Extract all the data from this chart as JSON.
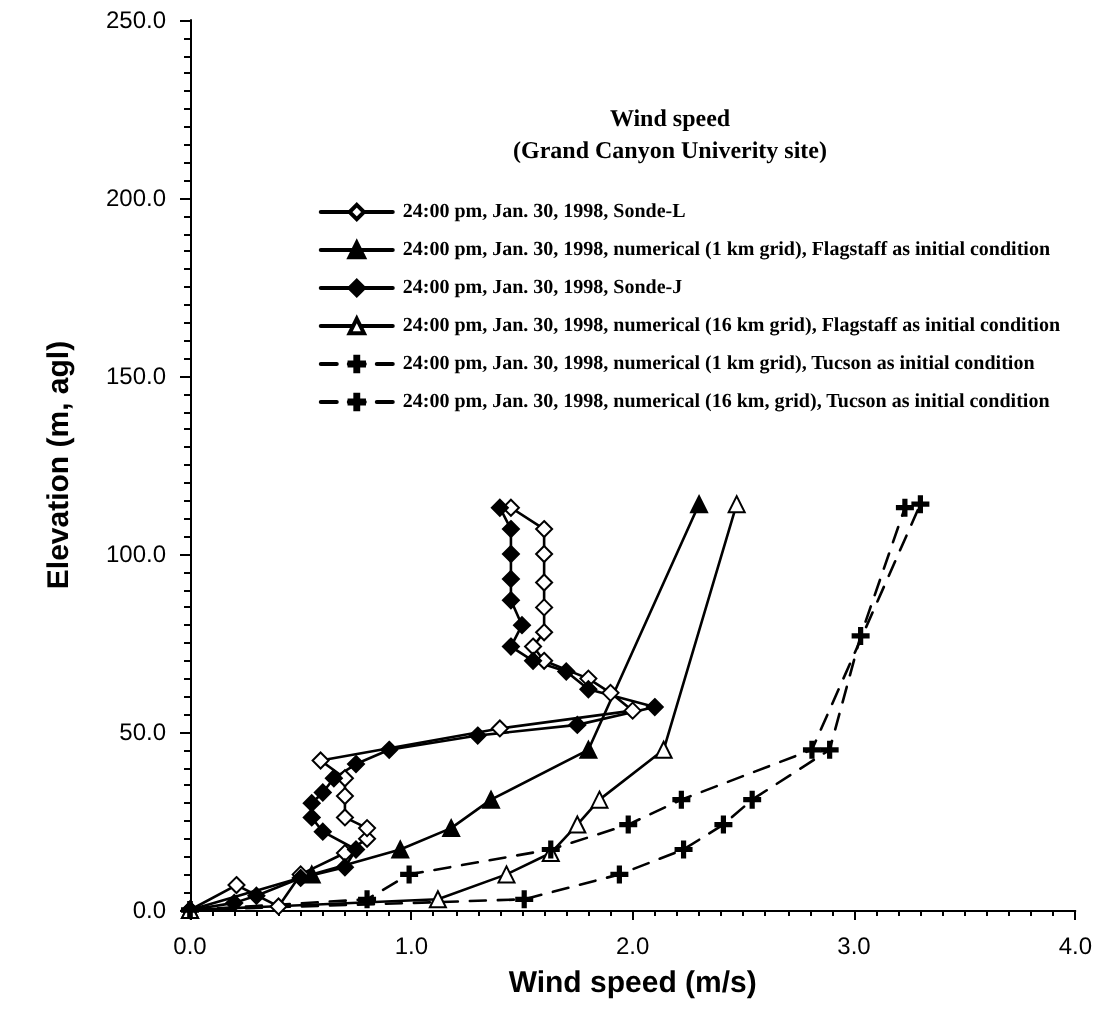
{
  "chart_data": {
    "type": "line",
    "title": "Wind speed",
    "subtitle": "(Grand Canyon Univerity site)",
    "xlabel": "Wind speed (m/s)",
    "ylabel": "Elevation (m, agl)",
    "xlim": [
      0,
      4
    ],
    "xticks": [
      {
        "value": 0,
        "label": "0.0"
      },
      {
        "value": 1,
        "label": "1.0"
      },
      {
        "value": 2,
        "label": "2.0"
      },
      {
        "value": 3,
        "label": "3.0"
      },
      {
        "value": 4,
        "label": "4.0"
      }
    ],
    "ylim": [
      0,
      250
    ],
    "yticks": [
      {
        "value": 0,
        "label": "0.0"
      },
      {
        "value": 50,
        "label": "50.0"
      },
      {
        "value": 100,
        "label": "100.0"
      },
      {
        "value": 150,
        "label": "150.0"
      },
      {
        "value": 200,
        "label": "200.0"
      },
      {
        "value": 250,
        "label": "250.0"
      }
    ],
    "grid": false,
    "legend": "top right",
    "series": [
      {
        "name": "24:00 pm, Jan. 30, 1998, Sonde-L",
        "color": "#000000",
        "marker": "diamond",
        "colors": [
          "#ffffff",
          "#ffffff",
          "#ffffff",
          "#ffffff",
          "#ffffff",
          "#ffffff",
          "#ffffff",
          "#ffffff",
          "#ffffff",
          "#ffffff",
          "#ffffff",
          "#ffffff",
          "#ffffff",
          "#ffffff",
          "#ffffff",
          "#ffffff",
          "#ffffff",
          "#ffffff",
          "#ffffff",
          "#ffffff",
          "#ffffff",
          "#ffffff",
          "#ffffff"
        ],
        "line_style": "solid",
        "x": [
          0,
          0.21,
          0.4,
          0.5,
          0.7,
          0.8,
          0.8,
          0.7,
          0.7,
          0.7,
          0.59,
          1.4,
          2.0,
          1.9,
          1.8,
          1.6,
          1.55,
          1.6,
          1.6,
          1.6,
          1.6,
          1.6,
          1.45
        ],
        "values": [
          0,
          7,
          1,
          10,
          16,
          20,
          23,
          26,
          32,
          37,
          42,
          51,
          56,
          61,
          65,
          70,
          74,
          78,
          85,
          92,
          100,
          107,
          113
        ]
      },
      {
        "name": "24:00 pm, Jan. 30, 1998, numerical (1 km grid), Flagstaff as initial condition",
        "color": "#000000",
        "marker": "triangle",
        "line_style": "solid",
        "x": [
          0,
          0.55,
          0.95,
          1.18,
          1.36,
          1.8,
          2.3
        ],
        "values": [
          0,
          10,
          17,
          23,
          31,
          45,
          114
        ]
      },
      {
        "name": "24:00 pm, Jan. 30, 1998, Sonde-J",
        "color": "#000000",
        "marker": "diamond",
        "line_style": "solid",
        "x": [
          0,
          0.2,
          0.3,
          0.5,
          0.7,
          0.75,
          0.6,
          0.55,
          0.55,
          0.6,
          0.65,
          0.75,
          0.9,
          1.3,
          1.75,
          2.1,
          1.8,
          1.7,
          1.55,
          1.45,
          1.5,
          1.45,
          1.45,
          1.45,
          1.45,
          1.4
        ],
        "values": [
          0,
          2,
          4,
          9,
          12,
          17,
          22,
          26,
          30,
          33,
          37,
          41,
          45,
          49,
          52,
          57,
          62,
          67,
          70,
          74,
          80,
          87,
          93,
          100,
          107,
          113
        ]
      },
      {
        "name": "24:00 pm, Jan. 30, 1998, numerical (16 km grid), Flagstaff as initial condition",
        "color": "#000000",
        "marker": "triangle",
        "colors": [
          "#ffffff",
          "#ffffff",
          "#ffffff",
          "#ffffff",
          "#ffffff",
          "#ffffff",
          "#ffffff",
          "#ffffff"
        ],
        "line_style": "solid",
        "x": [
          0,
          1.12,
          1.43,
          1.63,
          1.75,
          1.85,
          2.14,
          2.47
        ],
        "values": [
          0,
          3,
          10,
          16,
          24,
          31,
          45,
          114
        ]
      },
      {
        "name": "24:00 pm, Jan. 30, 1998, numerical (1 km grid), Tucson as initial condition",
        "color": "#000000",
        "marker": "cross",
        "line_style": "dashed",
        "x": [
          0,
          0.8,
          0.99,
          1.63,
          1.98,
          2.22,
          2.81,
          3.3
        ],
        "values": [
          0,
          3,
          10,
          17,
          24,
          31,
          45,
          114
        ]
      },
      {
        "name": "24:00 pm, Jan. 30, 1998, numerical (16 km, grid), Tucson as initial condition",
        "color": "#000000",
        "marker": "cross",
        "line_style": "dashed",
        "x": [
          0,
          1.51,
          1.94,
          2.23,
          2.41,
          2.54,
          2.89,
          3.03,
          3.23
        ],
        "values": [
          0,
          3,
          10,
          17,
          24,
          31,
          45,
          77,
          113
        ]
      }
    ]
  }
}
